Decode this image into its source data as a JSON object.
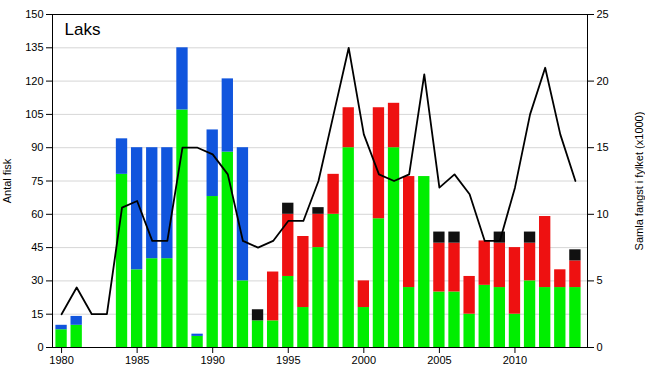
{
  "chart_data": {
    "type": "bar",
    "title": "Laks",
    "x": [
      1980,
      1981,
      1982,
      1983,
      1984,
      1985,
      1986,
      1987,
      1988,
      1989,
      1990,
      1991,
      1992,
      1993,
      1994,
      1995,
      1996,
      1997,
      1998,
      1999,
      2000,
      2001,
      2002,
      2003,
      2004,
      2005,
      2006,
      2007,
      2008,
      2009,
      2010,
      2011,
      2012,
      2013,
      2014
    ],
    "xlim": [
      1979.4,
      2014.8
    ],
    "xticks": [
      1980,
      1985,
      1990,
      1995,
      2000,
      2005,
      2010
    ],
    "ylim": [
      0,
      150
    ],
    "yticks": [
      0,
      15,
      30,
      45,
      60,
      75,
      90,
      105,
      120,
      135,
      150
    ],
    "ylabel": "Antal fisk",
    "y2lim": [
      0,
      25
    ],
    "y2ticks": [
      0,
      5,
      10,
      15,
      20,
      25
    ],
    "y2label": "Samla fangst i fylket (x1000)",
    "stacked": true,
    "grid": true,
    "series": [
      {
        "type": "bar",
        "color": "#00ee00",
        "values": [
          8,
          10,
          0,
          0,
          78,
          35,
          40,
          40,
          107,
          5,
          68,
          88,
          30,
          12,
          12,
          32,
          18,
          45,
          60,
          90,
          18,
          58,
          90,
          27,
          77,
          25,
          25,
          15,
          28,
          27,
          15,
          30,
          27,
          27,
          27
        ]
      },
      {
        "type": "bar",
        "color": "#1155dd",
        "values": [
          2,
          4,
          0,
          0,
          16,
          55,
          50,
          50,
          28,
          1,
          30,
          33,
          60,
          0,
          0,
          0,
          0,
          0,
          0,
          0,
          0,
          0,
          0,
          0,
          0,
          0,
          0,
          0,
          0,
          0,
          0,
          0,
          0,
          0,
          0
        ]
      },
      {
        "type": "bar",
        "color": "#ee1111",
        "values": [
          0,
          0,
          0,
          0,
          0,
          0,
          0,
          0,
          0,
          0,
          0,
          0,
          0,
          0,
          22,
          28,
          32,
          15,
          18,
          18,
          12,
          50,
          20,
          50,
          0,
          22,
          22,
          17,
          20,
          20,
          30,
          17,
          32,
          8,
          12
        ]
      },
      {
        "type": "bar",
        "color": "#111111",
        "values": [
          0,
          0,
          0,
          0,
          0,
          0,
          0,
          0,
          0,
          0,
          0,
          0,
          0,
          5,
          0,
          5,
          0,
          3,
          0,
          0,
          0,
          0,
          0,
          0,
          0,
          5,
          5,
          0,
          0,
          5,
          0,
          5,
          0,
          0,
          5
        ]
      },
      {
        "type": "line",
        "axis": "y2",
        "color": "#000000",
        "values": [
          2.5,
          4.5,
          2.5,
          2.5,
          10.5,
          11.0,
          8.0,
          8.0,
          15.0,
          15.0,
          14.5,
          13.0,
          8.0,
          7.5,
          8.0,
          9.5,
          9.5,
          12.5,
          17.5,
          22.5,
          16.0,
          13.0,
          12.5,
          13.0,
          20.5,
          12.0,
          13.0,
          11.5,
          8.0,
          8.0,
          12.0,
          17.5,
          21.0,
          16.0,
          12.5
        ]
      }
    ]
  }
}
